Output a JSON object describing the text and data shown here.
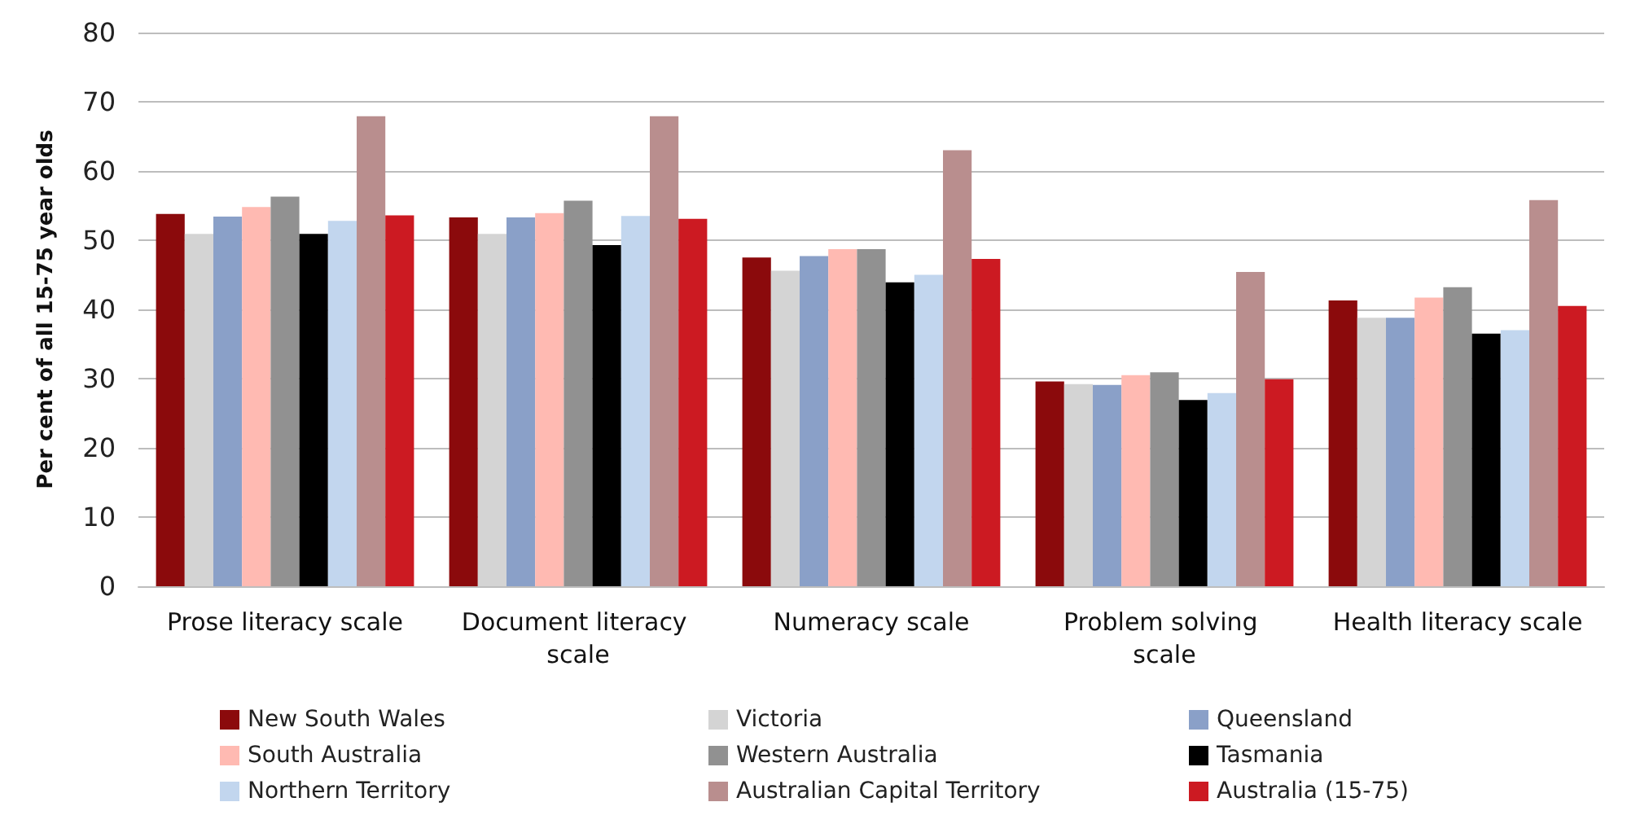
{
  "chart_data": {
    "type": "bar",
    "ylabel": "Per cent of all 15-75 year olds",
    "categories": [
      "Prose literacy scale",
      "Document literacy scale",
      "Numeracy scale",
      "Problem solving scale",
      "Health literacy scale"
    ],
    "series": [
      {
        "name": "New South Wales",
        "color": "#8b0a0c",
        "values": [
          53.8,
          53.3,
          47.5,
          29.6,
          41.3
        ]
      },
      {
        "name": "Victoria",
        "color": "#d4d4d4",
        "values": [
          50.9,
          50.9,
          45.6,
          29.2,
          38.8
        ]
      },
      {
        "name": "Queensland",
        "color": "#8aa0c8",
        "values": [
          53.4,
          53.3,
          47.7,
          29.1,
          38.8
        ]
      },
      {
        "name": "South Australia",
        "color": "#ffbab2",
        "values": [
          54.8,
          53.9,
          48.7,
          30.5,
          41.7
        ]
      },
      {
        "name": "Western Australia",
        "color": "#919191",
        "values": [
          56.3,
          55.7,
          48.7,
          30.9,
          43.2
        ]
      },
      {
        "name": "Tasmania",
        "color": "#000000",
        "values": [
          50.9,
          49.3,
          43.9,
          26.9,
          36.5
        ]
      },
      {
        "name": "Northern Territory",
        "color": "#c2d6ee",
        "values": [
          52.8,
          53.5,
          45.0,
          27.9,
          37.0
        ]
      },
      {
        "name": "Australian Capital Territory",
        "color": "#b98e8e",
        "values": [
          67.9,
          67.9,
          63.0,
          45.4,
          55.8
        ]
      },
      {
        "name": "Australia (15-75)",
        "color": "#cc1a22",
        "values": [
          53.6,
          53.1,
          47.3,
          29.9,
          40.5
        ]
      }
    ],
    "ylim": [
      0,
      80
    ],
    "yticks": [
      0,
      10,
      20,
      30,
      40,
      50,
      60,
      70,
      80
    ],
    "grid": "y",
    "legend": "bottom"
  }
}
